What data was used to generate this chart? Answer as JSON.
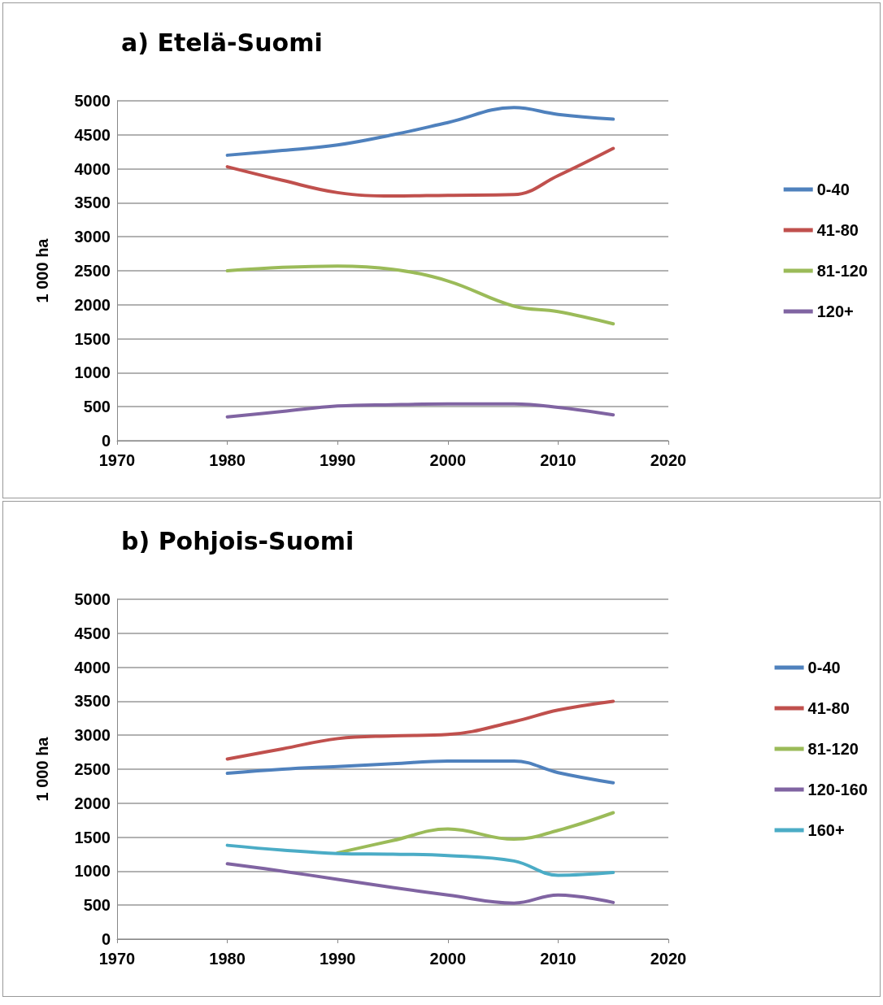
{
  "chart_data": [
    {
      "type": "line",
      "title": "a) Etelä-Suomi",
      "ylabel": "1 000 ha",
      "x": [
        1980,
        1985,
        1990,
        1995,
        2000,
        2006,
        2010,
        2015
      ],
      "xlim": [
        1970,
        2020
      ],
      "xticks": [
        1970,
        1980,
        1990,
        2000,
        2010,
        2020
      ],
      "ylim": [
        0,
        5000
      ],
      "yticks": [
        0,
        500,
        1000,
        1500,
        2000,
        2500,
        3000,
        3500,
        4000,
        4500,
        5000
      ],
      "grid": "y",
      "legend": "right",
      "marker": "none",
      "line_style": "solid",
      "series": [
        {
          "name": "0-40",
          "color": "#4f81bd",
          "values": [
            4200,
            4270,
            4350,
            4500,
            4680,
            4900,
            4800,
            4730
          ]
        },
        {
          "name": "41-80",
          "color": "#c0504d",
          "values": [
            4030,
            3830,
            3650,
            3600,
            3610,
            3620,
            3900,
            4300
          ]
        },
        {
          "name": "81-120",
          "color": "#9bbb59",
          "values": [
            2500,
            2550,
            2570,
            2520,
            2350,
            1980,
            1900,
            1720
          ]
        },
        {
          "name": "120+",
          "color": "#8064a2",
          "values": [
            350,
            430,
            510,
            530,
            540,
            540,
            490,
            380
          ]
        }
      ]
    },
    {
      "type": "line",
      "title": "b) Pohjois-Suomi",
      "ylabel": "1 000 ha",
      "x": [
        1980,
        1985,
        1990,
        1995,
        2000,
        2006,
        2010,
        2015
      ],
      "xlim": [
        1970,
        2020
      ],
      "xticks": [
        1970,
        1980,
        1990,
        2000,
        2010,
        2020
      ],
      "ylim": [
        0,
        5000
      ],
      "yticks": [
        0,
        500,
        1000,
        1500,
        2000,
        2500,
        3000,
        3500,
        4000,
        4500,
        5000
      ],
      "grid": "y",
      "legend": "right",
      "marker": "none",
      "line_style": "solid",
      "series": [
        {
          "name": "0-40",
          "color": "#4f81bd",
          "values": [
            2440,
            2500,
            2540,
            2580,
            2620,
            2620,
            2450,
            2300
          ]
        },
        {
          "name": "41-80",
          "color": "#c0504d",
          "values": [
            2650,
            2800,
            2950,
            2990,
            3010,
            3200,
            3370,
            3500
          ]
        },
        {
          "name": "81-120",
          "color": "#9bbb59",
          "values": [
            null,
            null,
            1270,
            1450,
            1620,
            1470,
            1600,
            1860
          ]
        },
        {
          "name": "120-160",
          "color": "#8064a2",
          "values": [
            1110,
            1000,
            880,
            760,
            650,
            530,
            650,
            540
          ]
        },
        {
          "name": "160+",
          "color": "#4bacc6",
          "values": [
            1380,
            1310,
            1260,
            1250,
            1230,
            1150,
            940,
            980
          ]
        }
      ]
    }
  ]
}
